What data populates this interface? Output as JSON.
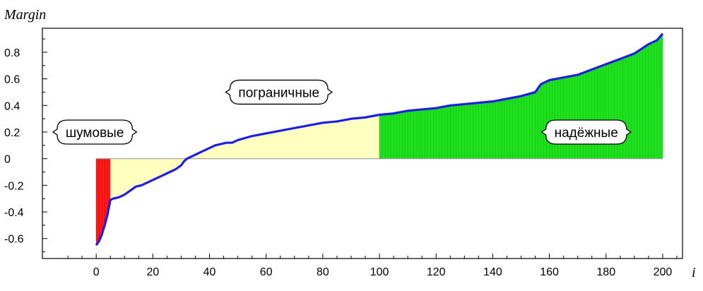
{
  "chart_data": {
    "type": "area",
    "ylabel": "Margin",
    "xlabel": "i",
    "xlim": [
      -19,
      207
    ],
    "ylim": [
      -0.75,
      0.98
    ],
    "x_ticks": [
      0,
      20,
      40,
      60,
      80,
      100,
      120,
      140,
      160,
      180,
      200
    ],
    "y_ticks": [
      -0.6,
      -0.4,
      -0.2,
      0,
      0.2,
      0.4,
      0.6,
      0.8
    ],
    "y_tick_labels": [
      "-0.6",
      "-0.4",
      "-0.2",
      "0",
      "0.2",
      "0.4",
      "0.6",
      "0.8"
    ],
    "grid": false,
    "colors": {
      "curve": "#1f1fe0",
      "noise": "#ff1a1a",
      "border": "#ffffc0",
      "reliable": "#1fe01f",
      "zero_line": "#9a9a9a"
    },
    "curve_x": [
      0,
      1,
      2,
      3,
      4,
      5,
      6,
      8,
      10,
      12,
      14,
      16,
      18,
      20,
      22,
      24,
      26,
      28,
      30,
      31,
      32,
      34,
      36,
      38,
      40,
      42,
      44,
      46,
      48,
      50,
      55,
      60,
      65,
      70,
      75,
      80,
      85,
      90,
      95,
      100,
      105,
      110,
      115,
      120,
      125,
      130,
      135,
      140,
      145,
      150,
      155,
      157,
      160,
      165,
      170,
      175,
      180,
      185,
      190,
      195,
      198,
      200
    ],
    "curve_y": [
      -0.65,
      -0.62,
      -0.57,
      -0.5,
      -0.42,
      -0.31,
      -0.3,
      -0.29,
      -0.27,
      -0.24,
      -0.21,
      -0.2,
      -0.18,
      -0.16,
      -0.14,
      -0.12,
      -0.1,
      -0.08,
      -0.05,
      -0.02,
      0.0,
      0.02,
      0.04,
      0.06,
      0.08,
      0.1,
      0.11,
      0.12,
      0.12,
      0.14,
      0.17,
      0.19,
      0.21,
      0.23,
      0.25,
      0.27,
      0.28,
      0.3,
      0.31,
      0.33,
      0.34,
      0.36,
      0.37,
      0.38,
      0.4,
      0.41,
      0.42,
      0.43,
      0.45,
      0.47,
      0.5,
      0.56,
      0.59,
      0.61,
      0.63,
      0.67,
      0.71,
      0.75,
      0.79,
      0.86,
      0.89,
      0.94
    ],
    "regions": [
      {
        "name": "шумовые",
        "from": 0,
        "to": 5
      },
      {
        "name": "пограничные",
        "from": 5,
        "to": 100
      },
      {
        "name": "надёжные",
        "from": 100,
        "to": 200
      }
    ],
    "annotations": [
      {
        "text": "шумовые",
        "x": -0.5,
        "y": 0.2
      },
      {
        "text": "пограничные",
        "x": 64.5,
        "y": 0.5
      },
      {
        "text": "надёжные",
        "x": 173,
        "y": 0.2
      }
    ]
  }
}
